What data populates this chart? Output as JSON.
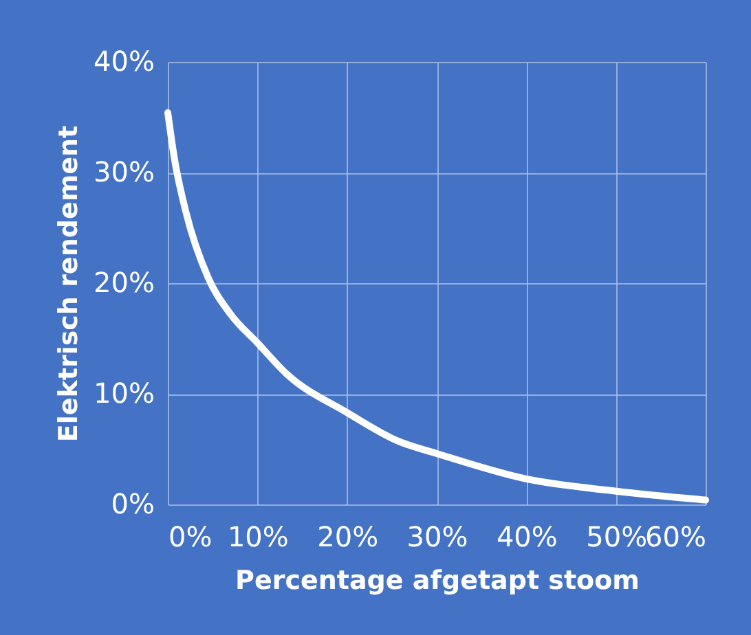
{
  "chart_data": {
    "type": "line",
    "xlabel": "Percentage afgetapt stoom",
    "ylabel": "Elektrisch rendement",
    "x": [
      0,
      0.75,
      2,
      4.5,
      7,
      10,
      13.25,
      20,
      25.75,
      30,
      40,
      50,
      60
    ],
    "series": [
      {
        "color": "#ffffff",
        "values": [
          35.4,
          31.2,
          26.5,
          20.5,
          17.2,
          14.6,
          11.8,
          8.3,
          5.7,
          4.6,
          2.3,
          1.2,
          0.4
        ]
      }
    ],
    "xlim": [
      0,
      60
    ],
    "ylim": [
      0,
      40
    ],
    "xticks": [
      {
        "value": 0,
        "label": "0%"
      },
      {
        "value": 10,
        "label": "10%"
      },
      {
        "value": 20,
        "label": "20%"
      },
      {
        "value": 30,
        "label": "30%"
      },
      {
        "value": 40,
        "label": "40%"
      },
      {
        "value": 50,
        "label": "50%"
      },
      {
        "value": 60,
        "label": "60%"
      }
    ],
    "yticks": [
      {
        "value": 0,
        "label": "0%"
      },
      {
        "value": 10,
        "label": "10%"
      },
      {
        "value": 20,
        "label": "20%"
      },
      {
        "value": 30,
        "label": "30%"
      },
      {
        "value": 40,
        "label": "40%"
      }
    ],
    "grid": true,
    "marker": "none",
    "line_style": "solid"
  }
}
